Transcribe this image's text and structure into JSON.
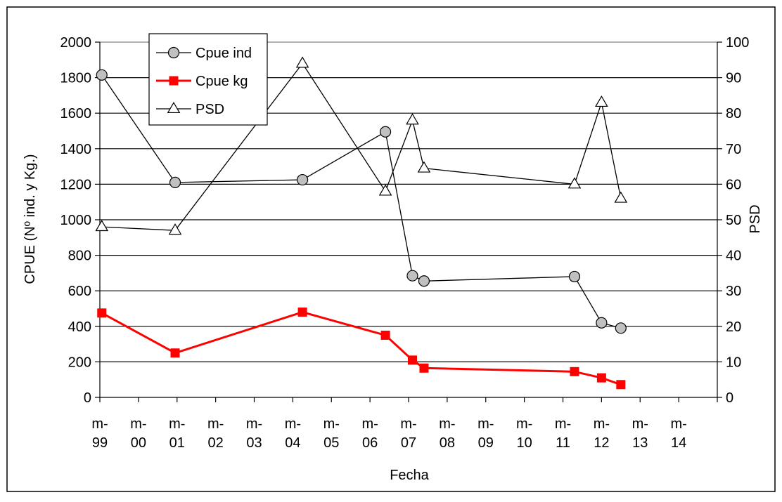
{
  "chart_data": {
    "type": "line",
    "xlabel": "Fecha",
    "ylabel": "CPUE (Nº ind. y Kg.)",
    "y2label": "PSD",
    "ylim": [
      0,
      2000
    ],
    "y2lim": [
      0,
      100
    ],
    "xlim": [
      1999,
      2015
    ],
    "yticks": [
      "0",
      "200",
      "400",
      "600",
      "800",
      "1000",
      "1200",
      "1400",
      "1600",
      "1800",
      "2000"
    ],
    "y2ticks": [
      "0",
      "10",
      "20",
      "30",
      "40",
      "50",
      "60",
      "70",
      "80",
      "90",
      "100"
    ],
    "xticks": [
      {
        "top": "m-",
        "bottom": "99",
        "x": 1999
      },
      {
        "top": "m-",
        "bottom": "00",
        "x": 2000
      },
      {
        "top": "m-",
        "bottom": "01",
        "x": 2001
      },
      {
        "top": "m-",
        "bottom": "02",
        "x": 2002
      },
      {
        "top": "m-",
        "bottom": "03",
        "x": 2003
      },
      {
        "top": "m-",
        "bottom": "04",
        "x": 2004
      },
      {
        "top": "m-",
        "bottom": "05",
        "x": 2005
      },
      {
        "top": "m-",
        "bottom": "06",
        "x": 2006
      },
      {
        "top": "m-",
        "bottom": "07",
        "x": 2007
      },
      {
        "top": "m-",
        "bottom": "08",
        "x": 2008
      },
      {
        "top": "m-",
        "bottom": "09",
        "x": 2009
      },
      {
        "top": "m-",
        "bottom": "10",
        "x": 2010
      },
      {
        "top": "m-",
        "bottom": "11",
        "x": 2011
      },
      {
        "top": "m-",
        "bottom": "12",
        "x": 2012
      },
      {
        "top": "m-",
        "bottom": "13",
        "x": 2013
      },
      {
        "top": "m-",
        "bottom": "14",
        "x": 2014
      }
    ],
    "grid": "horizontal",
    "legend_position": "top-left",
    "series": [
      {
        "name": "Cpue ind",
        "axis": "left",
        "marker": "circle",
        "color": "#000000",
        "marker_fill": "#c0c0c0",
        "points": [
          {
            "x": 1999.05,
            "y": 1815
          },
          {
            "x": 2000.95,
            "y": 1210
          },
          {
            "x": 2004.25,
            "y": 1225
          },
          {
            "x": 2006.4,
            "y": 1495
          },
          {
            "x": 2007.1,
            "y": 685
          },
          {
            "x": 2007.4,
            "y": 655
          },
          {
            "x": 2011.3,
            "y": 680
          },
          {
            "x": 2012.0,
            "y": 420
          },
          {
            "x": 2012.5,
            "y": 390
          }
        ]
      },
      {
        "name": "Cpue kg",
        "axis": "left",
        "marker": "square",
        "color": "#ff0000",
        "marker_fill": "#ff0000",
        "points": [
          {
            "x": 1999.05,
            "y": 475
          },
          {
            "x": 2000.95,
            "y": 250
          },
          {
            "x": 2004.25,
            "y": 480
          },
          {
            "x": 2006.4,
            "y": 350
          },
          {
            "x": 2007.1,
            "y": 210
          },
          {
            "x": 2007.4,
            "y": 165
          },
          {
            "x": 2011.3,
            "y": 145
          },
          {
            "x": 2012.0,
            "y": 110
          },
          {
            "x": 2012.5,
            "y": 72
          }
        ]
      },
      {
        "name": "PSD",
        "axis": "right",
        "marker": "triangle",
        "color": "#000000",
        "marker_fill": "#ffffff",
        "points": [
          {
            "x": 1999.05,
            "y": 48
          },
          {
            "x": 2000.95,
            "y": 47
          },
          {
            "x": 2004.25,
            "y": 94
          },
          {
            "x": 2006.4,
            "y": 58
          },
          {
            "x": 2007.1,
            "y": 78
          },
          {
            "x": 2007.4,
            "y": 64.5
          },
          {
            "x": 2011.3,
            "y": 60
          },
          {
            "x": 2012.0,
            "y": 83
          },
          {
            "x": 2012.5,
            "y": 56
          }
        ]
      }
    ]
  }
}
